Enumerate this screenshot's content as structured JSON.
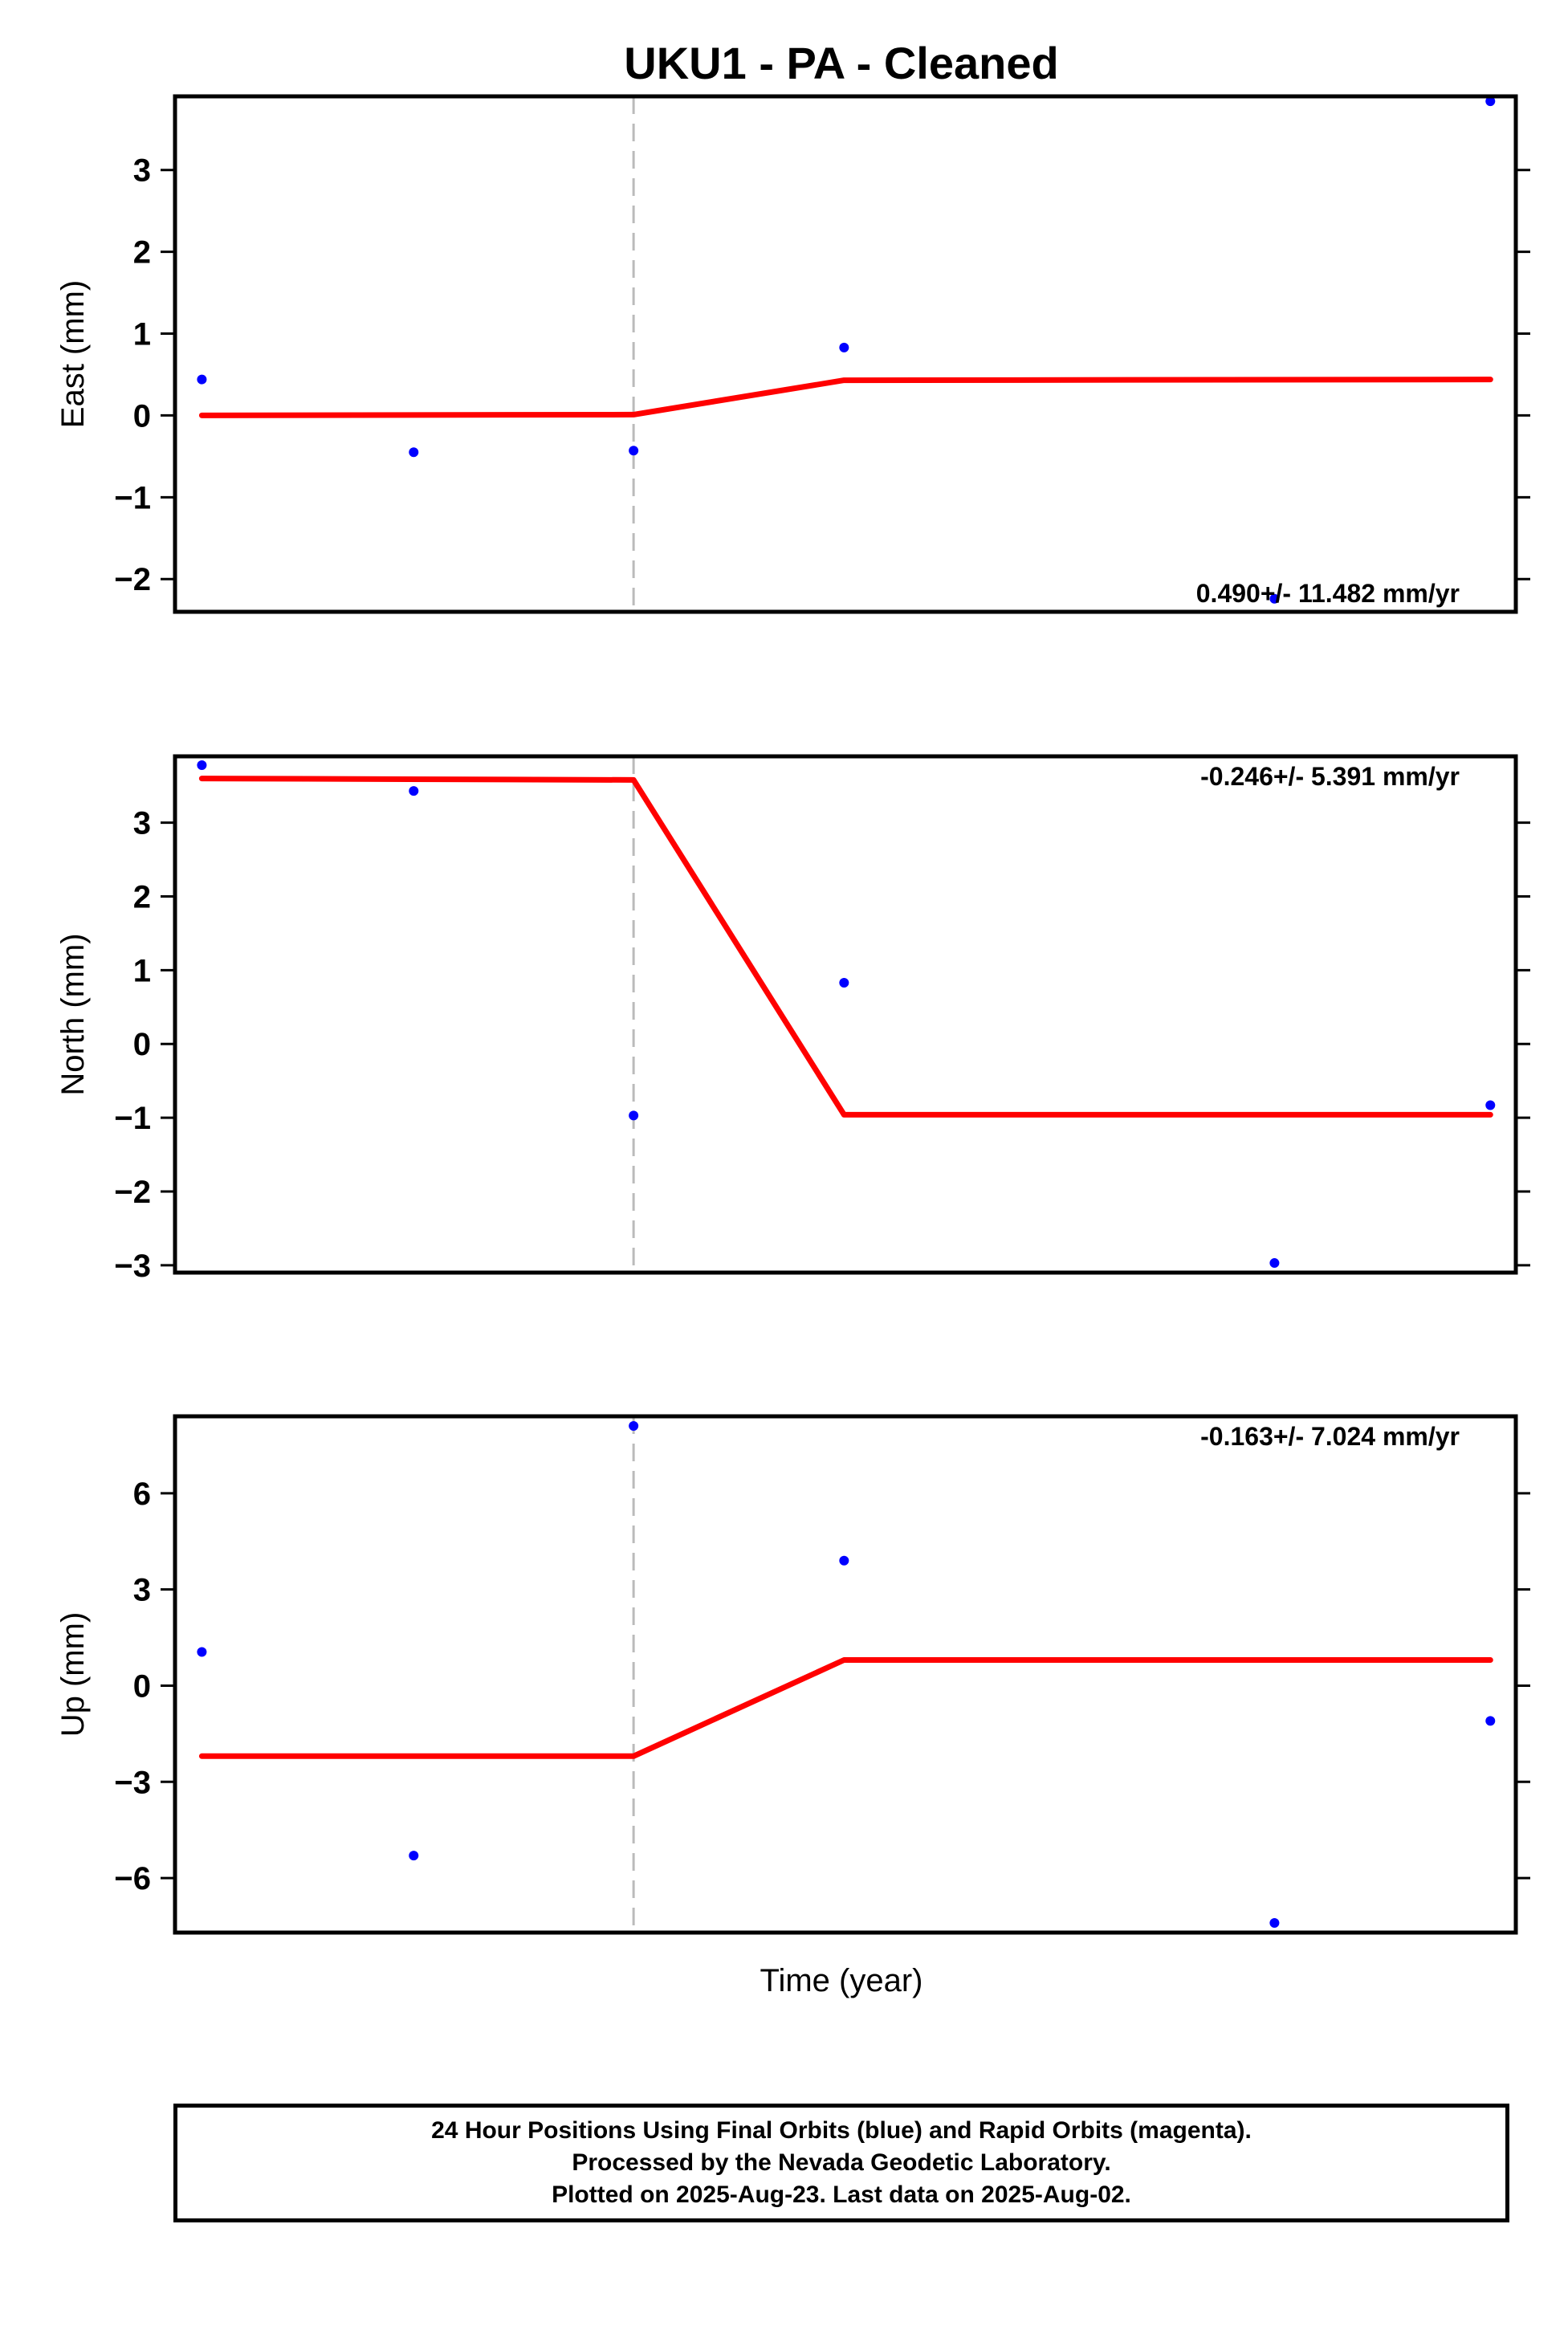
{
  "chart_data": {
    "title": "UKU1  - PA - Cleaned",
    "xlabel": "Time (year)",
    "colors": {
      "points": "#0000ff",
      "model": "#ff0000",
      "event_line": "#bbbbbb",
      "frame": "#000000"
    },
    "panels": [
      {
        "type": "scatter",
        "ylabel": "East (mm)",
        "ylim": [
          -2.4,
          3.9
        ],
        "yticks": [
          -2,
          -1,
          0,
          1,
          2,
          3
        ],
        "ytick_labels": [
          "−2",
          "−1",
          "0",
          "1",
          "2",
          "3"
        ],
        "rate_label": "0.490+/- 11.482 mm/yr",
        "rate_position": "bottom-right",
        "points": [
          {
            "x": 0.02,
            "y": 0.44
          },
          {
            "x": 0.178,
            "y": -0.45
          },
          {
            "x": 0.342,
            "y": -0.43
          },
          {
            "x": 0.499,
            "y": 0.83
          },
          {
            "x": 0.82,
            "y": -2.24
          },
          {
            "x": 0.981,
            "y": 3.84
          }
        ],
        "model": [
          {
            "x": 0.02,
            "y": 0.0
          },
          {
            "x": 0.342,
            "y": 0.01
          },
          {
            "x": 0.499,
            "y": 0.43
          },
          {
            "x": 0.981,
            "y": 0.44
          }
        ]
      },
      {
        "type": "scatter",
        "ylabel": "North (mm)",
        "ylim": [
          -3.1,
          3.9
        ],
        "yticks": [
          -3,
          -2,
          -1,
          0,
          1,
          2,
          3
        ],
        "ytick_labels": [
          "−3",
          "−2",
          "−1",
          "0",
          "1",
          "2",
          "3"
        ],
        "rate_label": "-0.246+/- 5.391 mm/yr",
        "rate_position": "top-right",
        "points": [
          {
            "x": 0.02,
            "y": 3.78
          },
          {
            "x": 0.178,
            "y": 3.43
          },
          {
            "x": 0.342,
            "y": -0.97
          },
          {
            "x": 0.499,
            "y": 0.83
          },
          {
            "x": 0.82,
            "y": -2.97
          },
          {
            "x": 0.981,
            "y": -0.83
          }
        ],
        "model": [
          {
            "x": 0.02,
            "y": 3.6
          },
          {
            "x": 0.342,
            "y": 3.58
          },
          {
            "x": 0.499,
            "y": -0.96
          },
          {
            "x": 0.981,
            "y": -0.96
          }
        ]
      },
      {
        "type": "scatter",
        "ylabel": "Up (mm)",
        "ylim": [
          -7.7,
          8.4
        ],
        "yticks": [
          -6,
          -3,
          0,
          3,
          6
        ],
        "ytick_labels": [
          "−6",
          "−3",
          "0",
          "3",
          "6"
        ],
        "rate_label": "-0.163+/- 7.024 mm/yr",
        "rate_position": "top-right",
        "points": [
          {
            "x": 0.02,
            "y": 1.05
          },
          {
            "x": 0.178,
            "y": -5.3
          },
          {
            "x": 0.342,
            "y": 8.1
          },
          {
            "x": 0.499,
            "y": 3.9
          },
          {
            "x": 0.82,
            "y": -7.4
          },
          {
            "x": 0.981,
            "y": -1.1
          }
        ],
        "model": [
          {
            "x": 0.02,
            "y": -2.2
          },
          {
            "x": 0.342,
            "y": -2.2
          },
          {
            "x": 0.499,
            "y": 0.8
          },
          {
            "x": 0.981,
            "y": 0.8
          }
        ]
      }
    ],
    "event_line_x": 0.342
  },
  "footer": {
    "line1": "24 Hour Positions Using Final Orbits (blue) and Rapid Orbits (magenta).",
    "line2": "Processed by the Nevada Geodetic Laboratory.",
    "line3": "Plotted on 2025-Aug-23. Last data on 2025-Aug-02."
  }
}
